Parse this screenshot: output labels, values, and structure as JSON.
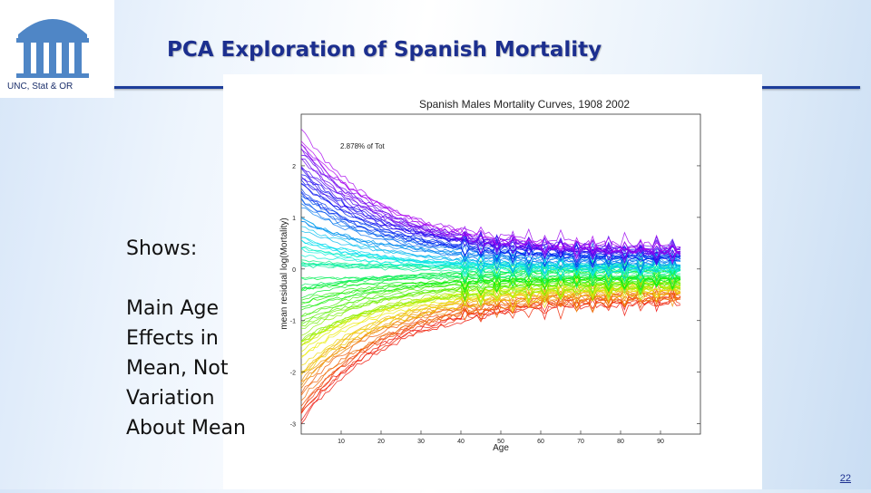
{
  "slide": {
    "title": "PCA Exploration of Spanish Mortality",
    "logo_caption": "UNC, Stat & OR",
    "page_number": "22"
  },
  "body": {
    "shows": "Shows:",
    "lines": [
      "Main Age",
      "Effects in",
      "Mean, Not",
      "Variation",
      "About Mean"
    ]
  },
  "colors": {
    "title": "#1c2f8f",
    "rule": "#1c3d9a"
  },
  "chart_data": {
    "type": "line",
    "title": "Spanish Males Mortality Curves, 1908  2002",
    "annotation": "2.878% of Tot",
    "xlabel": "Age",
    "ylabel": "mean residual log(Mortality)",
    "xlim": [
      0,
      100
    ],
    "ylim": [
      -3.2,
      3
    ],
    "xticks": [
      10,
      20,
      30,
      40,
      50,
      60,
      70,
      80,
      90
    ],
    "yticks": [
      2,
      1,
      0,
      -1,
      -2,
      -3
    ],
    "color_scale": "years 1908 (red) to 2002 (purple), rainbow"
  }
}
